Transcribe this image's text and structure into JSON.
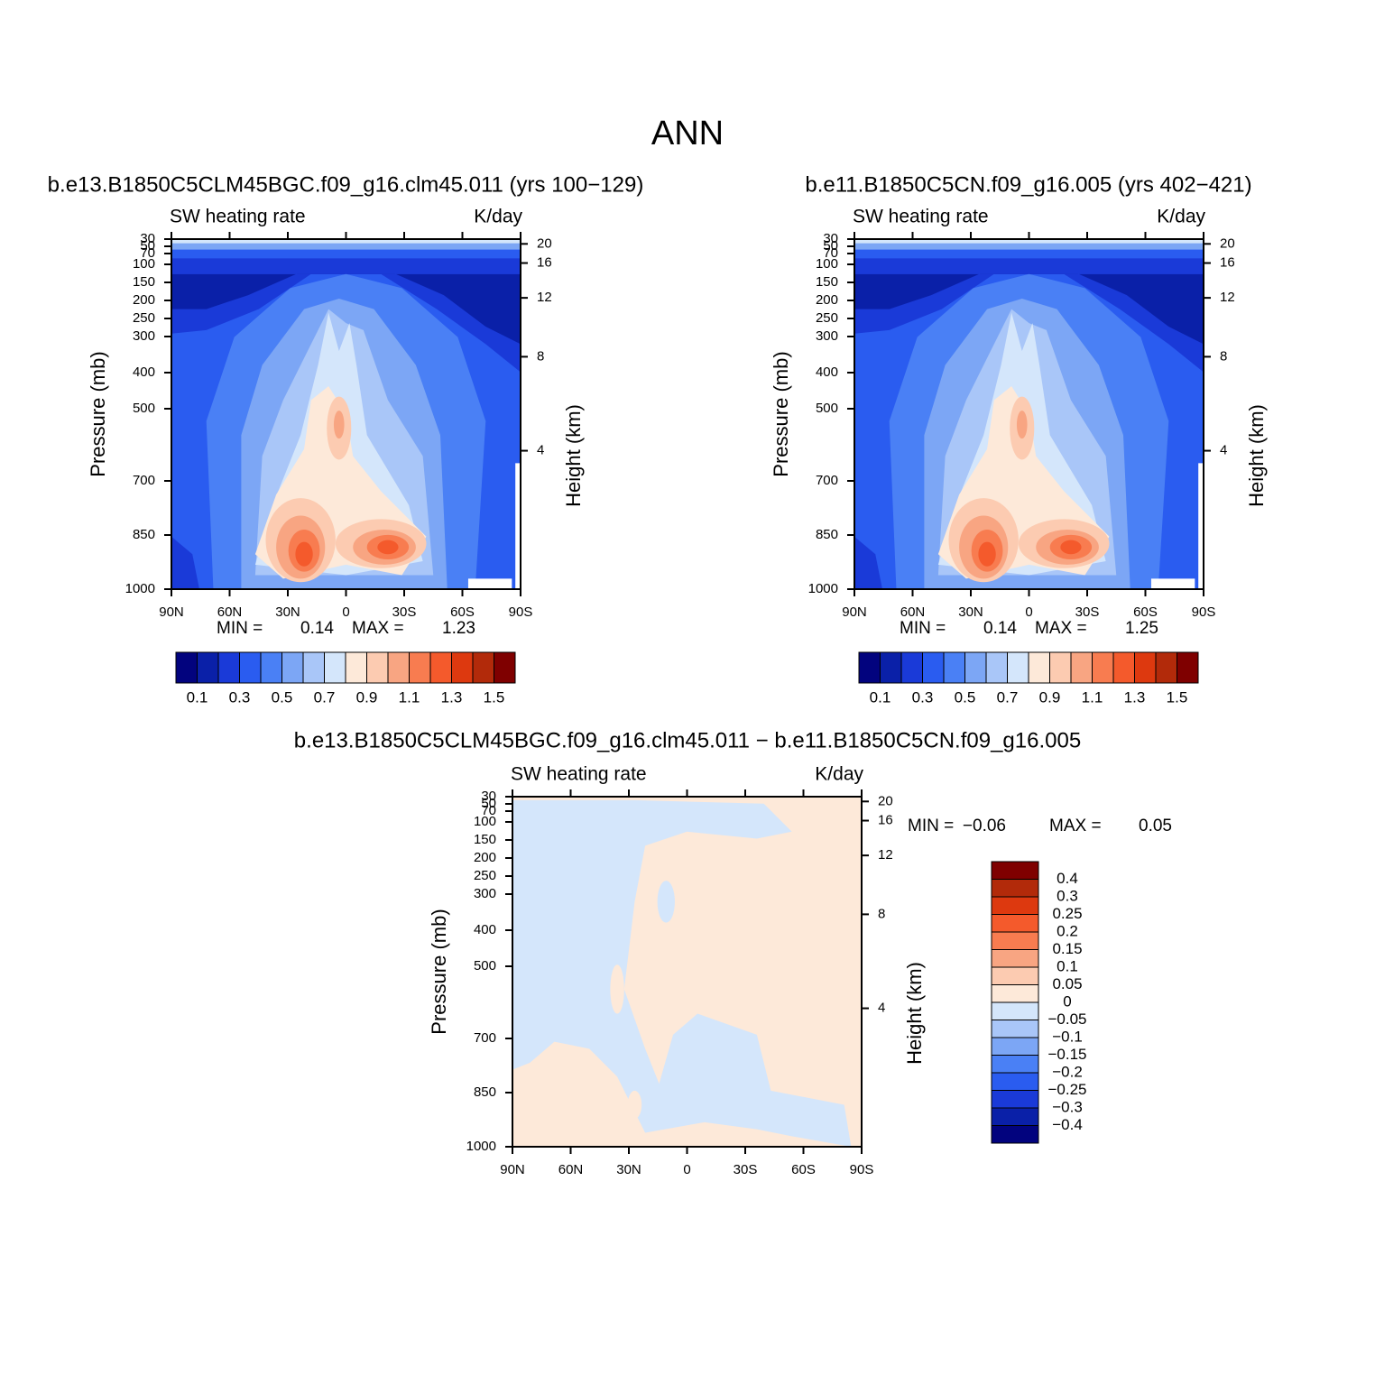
{
  "figure_title": "ANN",
  "chart_data": [
    {
      "type": "contour",
      "title": "b.e13.B1850C5CLM45BGC.f09_g16.clm45.011 (yrs 100−129)",
      "left_label": "SW heating rate",
      "right_label": "K/day",
      "ylabel": "Pressure (mb)",
      "y2label": "Height (km)",
      "xlim": [
        90,
        -90
      ],
      "xticks": [
        {
          "value": 90,
          "label": "90N"
        },
        {
          "value": 60,
          "label": "60N"
        },
        {
          "value": 30,
          "label": "30N"
        },
        0,
        {
          "value": -30,
          "label": "30S"
        },
        {
          "value": -60,
          "label": "60S"
        },
        {
          "value": -90,
          "label": "90S"
        }
      ],
      "ylim": [
        1000,
        30
      ],
      "yticks": [
        30,
        50,
        70,
        100,
        150,
        200,
        250,
        300,
        400,
        500,
        700,
        850,
        1000
      ],
      "y2ticks": [
        20,
        16,
        12,
        8,
        4
      ],
      "y2_scale": "standard-atmosphere",
      "min_label": "MIN =",
      "min": 0.14,
      "max_label": "MAX =",
      "max": 1.23,
      "colorbar": {
        "orientation": "horizontal",
        "label_stride": 2,
        "levels": [
          0.1,
          0.2,
          0.3,
          0.4,
          0.5,
          0.6,
          0.7,
          0.8,
          0.9,
          1.0,
          1.1,
          1.2,
          1.3,
          1.4,
          1.5
        ],
        "colors": [
          "#02037e",
          "#0a20a8",
          "#1a3ad8",
          "#2a5cf0",
          "#4a80f5",
          "#7ca6f5",
          "#a9c6f8",
          "#d4e6fb",
          "#fde9d9",
          "#fccbb1",
          "#f8a582",
          "#f87c50",
          "#f45a2c",
          "#dd390f",
          "#b22a0a",
          "#7f0000"
        ]
      }
    },
    {
      "type": "contour",
      "title": "b.e11.B1850C5CN.f09_g16.005 (yrs 402−421)",
      "left_label": "SW heating rate",
      "right_label": "K/day",
      "ylabel": "Pressure (mb)",
      "y2label": "Height (km)",
      "xlim": [
        90,
        -90
      ],
      "xticks": [
        {
          "value": 90,
          "label": "90N"
        },
        {
          "value": 60,
          "label": "60N"
        },
        {
          "value": 30,
          "label": "30N"
        },
        0,
        {
          "value": -30,
          "label": "30S"
        },
        {
          "value": -60,
          "label": "60S"
        },
        {
          "value": -90,
          "label": "90S"
        }
      ],
      "ylim": [
        1000,
        30
      ],
      "yticks": [
        30,
        50,
        70,
        100,
        150,
        200,
        250,
        300,
        400,
        500,
        700,
        850,
        1000
      ],
      "y2ticks": [
        20,
        16,
        12,
        8,
        4
      ],
      "y2_scale": "standard-atmosphere",
      "min_label": "MIN =",
      "min": 0.14,
      "max_label": "MAX =",
      "max": 1.25,
      "colorbar": {
        "orientation": "horizontal",
        "label_stride": 2,
        "levels": [
          0.1,
          0.2,
          0.3,
          0.4,
          0.5,
          0.6,
          0.7,
          0.8,
          0.9,
          1.0,
          1.1,
          1.2,
          1.3,
          1.4,
          1.5
        ],
        "colors": [
          "#02037e",
          "#0a20a8",
          "#1a3ad8",
          "#2a5cf0",
          "#4a80f5",
          "#7ca6f5",
          "#a9c6f8",
          "#d4e6fb",
          "#fde9d9",
          "#fccbb1",
          "#f8a582",
          "#f87c50",
          "#f45a2c",
          "#dd390f",
          "#b22a0a",
          "#7f0000"
        ]
      }
    },
    {
      "type": "contour",
      "title": "b.e13.B1850C5CLM45BGC.f09_g16.clm45.011 − b.e11.B1850C5CN.f09_g16.005",
      "left_label": "SW heating rate",
      "right_label": "K/day",
      "ylabel": "Pressure (mb)",
      "y2label": "Height (km)",
      "xlim": [
        90,
        -90
      ],
      "xticks": [
        {
          "value": 90,
          "label": "90N"
        },
        {
          "value": 60,
          "label": "60N"
        },
        {
          "value": 30,
          "label": "30N"
        },
        0,
        {
          "value": -30,
          "label": "30S"
        },
        {
          "value": -60,
          "label": "60S"
        },
        {
          "value": -90,
          "label": "90S"
        }
      ],
      "ylim": [
        1000,
        30
      ],
      "yticks": [
        30,
        50,
        70,
        100,
        150,
        200,
        250,
        300,
        400,
        500,
        700,
        850,
        1000
      ],
      "y2ticks": [
        20,
        16,
        12,
        8,
        4
      ],
      "y2_scale": "standard-atmosphere",
      "min_label": "MIN =",
      "min": {
        "value": -0.06,
        "label": "−0.06"
      },
      "max_label": "MAX =",
      "max": 0.05,
      "colorbar": {
        "orientation": "vertical",
        "label_stride": 1,
        "levels": [
          {
            "value": -0.4,
            "label": "−0.4"
          },
          {
            "value": -0.3,
            "label": "−0.3"
          },
          {
            "value": -0.25,
            "label": "−0.25"
          },
          {
            "value": -0.2,
            "label": "−0.2"
          },
          {
            "value": -0.15,
            "label": "−0.15"
          },
          {
            "value": -0.1,
            "label": "−0.1"
          },
          {
            "value": -0.05,
            "label": "−0.05"
          },
          0,
          0.05,
          0.1,
          0.15,
          0.2,
          0.25,
          0.3,
          0.4
        ],
        "colors": [
          "#02037e",
          "#0a20a8",
          "#1a3ad8",
          "#2a5cf0",
          "#4a80f5",
          "#7ca6f5",
          "#a9c6f8",
          "#d4e6fb",
          "#fde9d9",
          "#fccbb1",
          "#f8a582",
          "#f87c50",
          "#f45a2c",
          "#dd390f",
          "#b22a0a",
          "#7f0000"
        ]
      }
    }
  ]
}
